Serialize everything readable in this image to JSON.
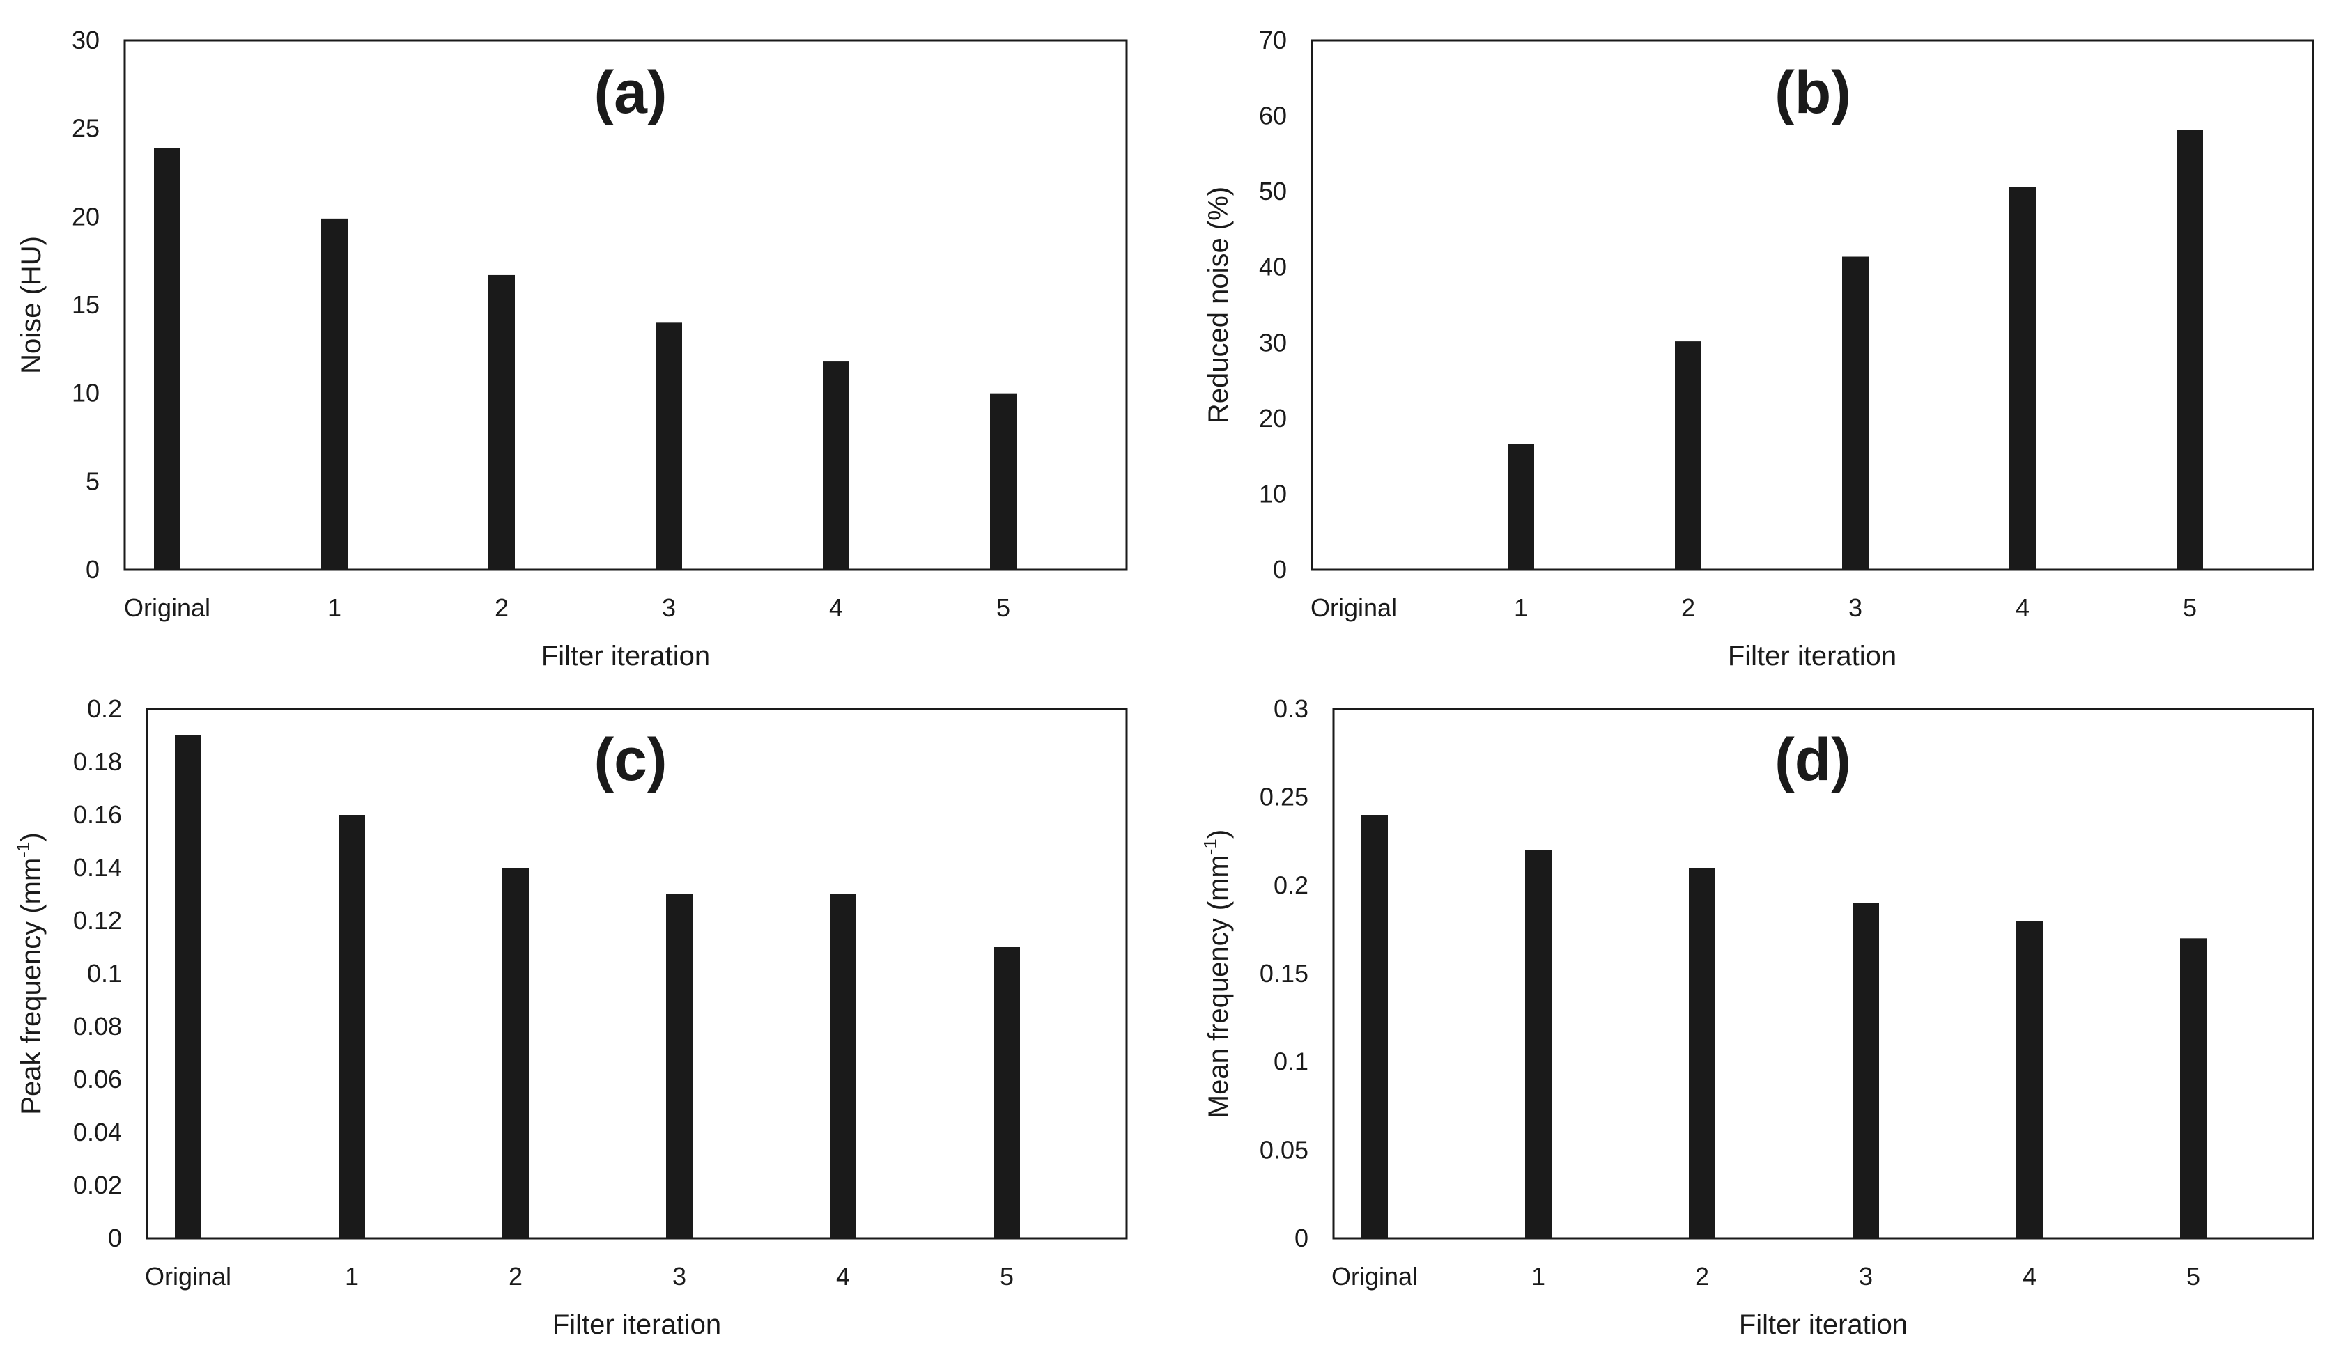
{
  "figure": {
    "bar_color": "#1a1a1a",
    "frame_color": "#1a1a1a"
  },
  "chart_data": [
    {
      "type": "bar",
      "panel_label": "(a)",
      "categories": [
        "Original",
        "1",
        "2",
        "3",
        "4",
        "5"
      ],
      "values": [
        23.9,
        19.9,
        16.7,
        14.0,
        11.8,
        10.0
      ],
      "ylim": [
        0,
        30
      ],
      "yticks": [
        0,
        5,
        10,
        15,
        20,
        25,
        30
      ],
      "ytick_labels": [
        "0",
        "5",
        "10",
        "15",
        "20",
        "25",
        "30"
      ],
      "xlabel": "Filter iteration",
      "ylabel": "Noise (HU)",
      "ylabel_sup": "",
      "ylabel_tail": ""
    },
    {
      "type": "bar",
      "panel_label": "(b)",
      "categories": [
        "Original",
        "1",
        "2",
        "3",
        "4",
        "5"
      ],
      "values": [
        0,
        16.6,
        30.2,
        41.4,
        50.6,
        58.2
      ],
      "ylim": [
        0,
        70
      ],
      "yticks": [
        0,
        10,
        20,
        30,
        40,
        50,
        60,
        70
      ],
      "ytick_labels": [
        "0",
        "10",
        "20",
        "30",
        "40",
        "50",
        "60",
        "70"
      ],
      "xlabel": "Filter iteration",
      "ylabel": "Reduced noise (%)",
      "ylabel_sup": "",
      "ylabel_tail": ""
    },
    {
      "type": "bar",
      "panel_label": "(c)",
      "categories": [
        "Original",
        "1",
        "2",
        "3",
        "4",
        "5"
      ],
      "values": [
        0.19,
        0.16,
        0.14,
        0.13,
        0.13,
        0.11
      ],
      "ylim": [
        0,
        0.2
      ],
      "yticks": [
        0,
        0.02,
        0.04,
        0.06,
        0.08,
        0.1,
        0.12,
        0.14,
        0.16,
        0.18,
        0.2
      ],
      "ytick_labels": [
        "0",
        "0.02",
        "0.04",
        "0.06",
        "0.08",
        "0.1",
        "0.12",
        "0.14",
        "0.16",
        "0.18",
        "0.2"
      ],
      "xlabel": "Filter iteration",
      "ylabel": "Peak frequency (mm",
      "ylabel_sup": "-1",
      "ylabel_tail": ")"
    },
    {
      "type": "bar",
      "panel_label": "(d)",
      "categories": [
        "Original",
        "1",
        "2",
        "3",
        "4",
        "5"
      ],
      "values": [
        0.24,
        0.22,
        0.21,
        0.19,
        0.18,
        0.17
      ],
      "ylim": [
        0,
        0.3
      ],
      "yticks": [
        0,
        0.05,
        0.1,
        0.15,
        0.2,
        0.25,
        0.3
      ],
      "ytick_labels": [
        "0",
        "0.05",
        "0.1",
        "0.15",
        "0.2",
        "0.25",
        "0.3"
      ],
      "xlabel": "Filter iteration",
      "ylabel": "Mean frequency (mm",
      "ylabel_sup": "-1",
      "ylabel_tail": ")"
    }
  ]
}
